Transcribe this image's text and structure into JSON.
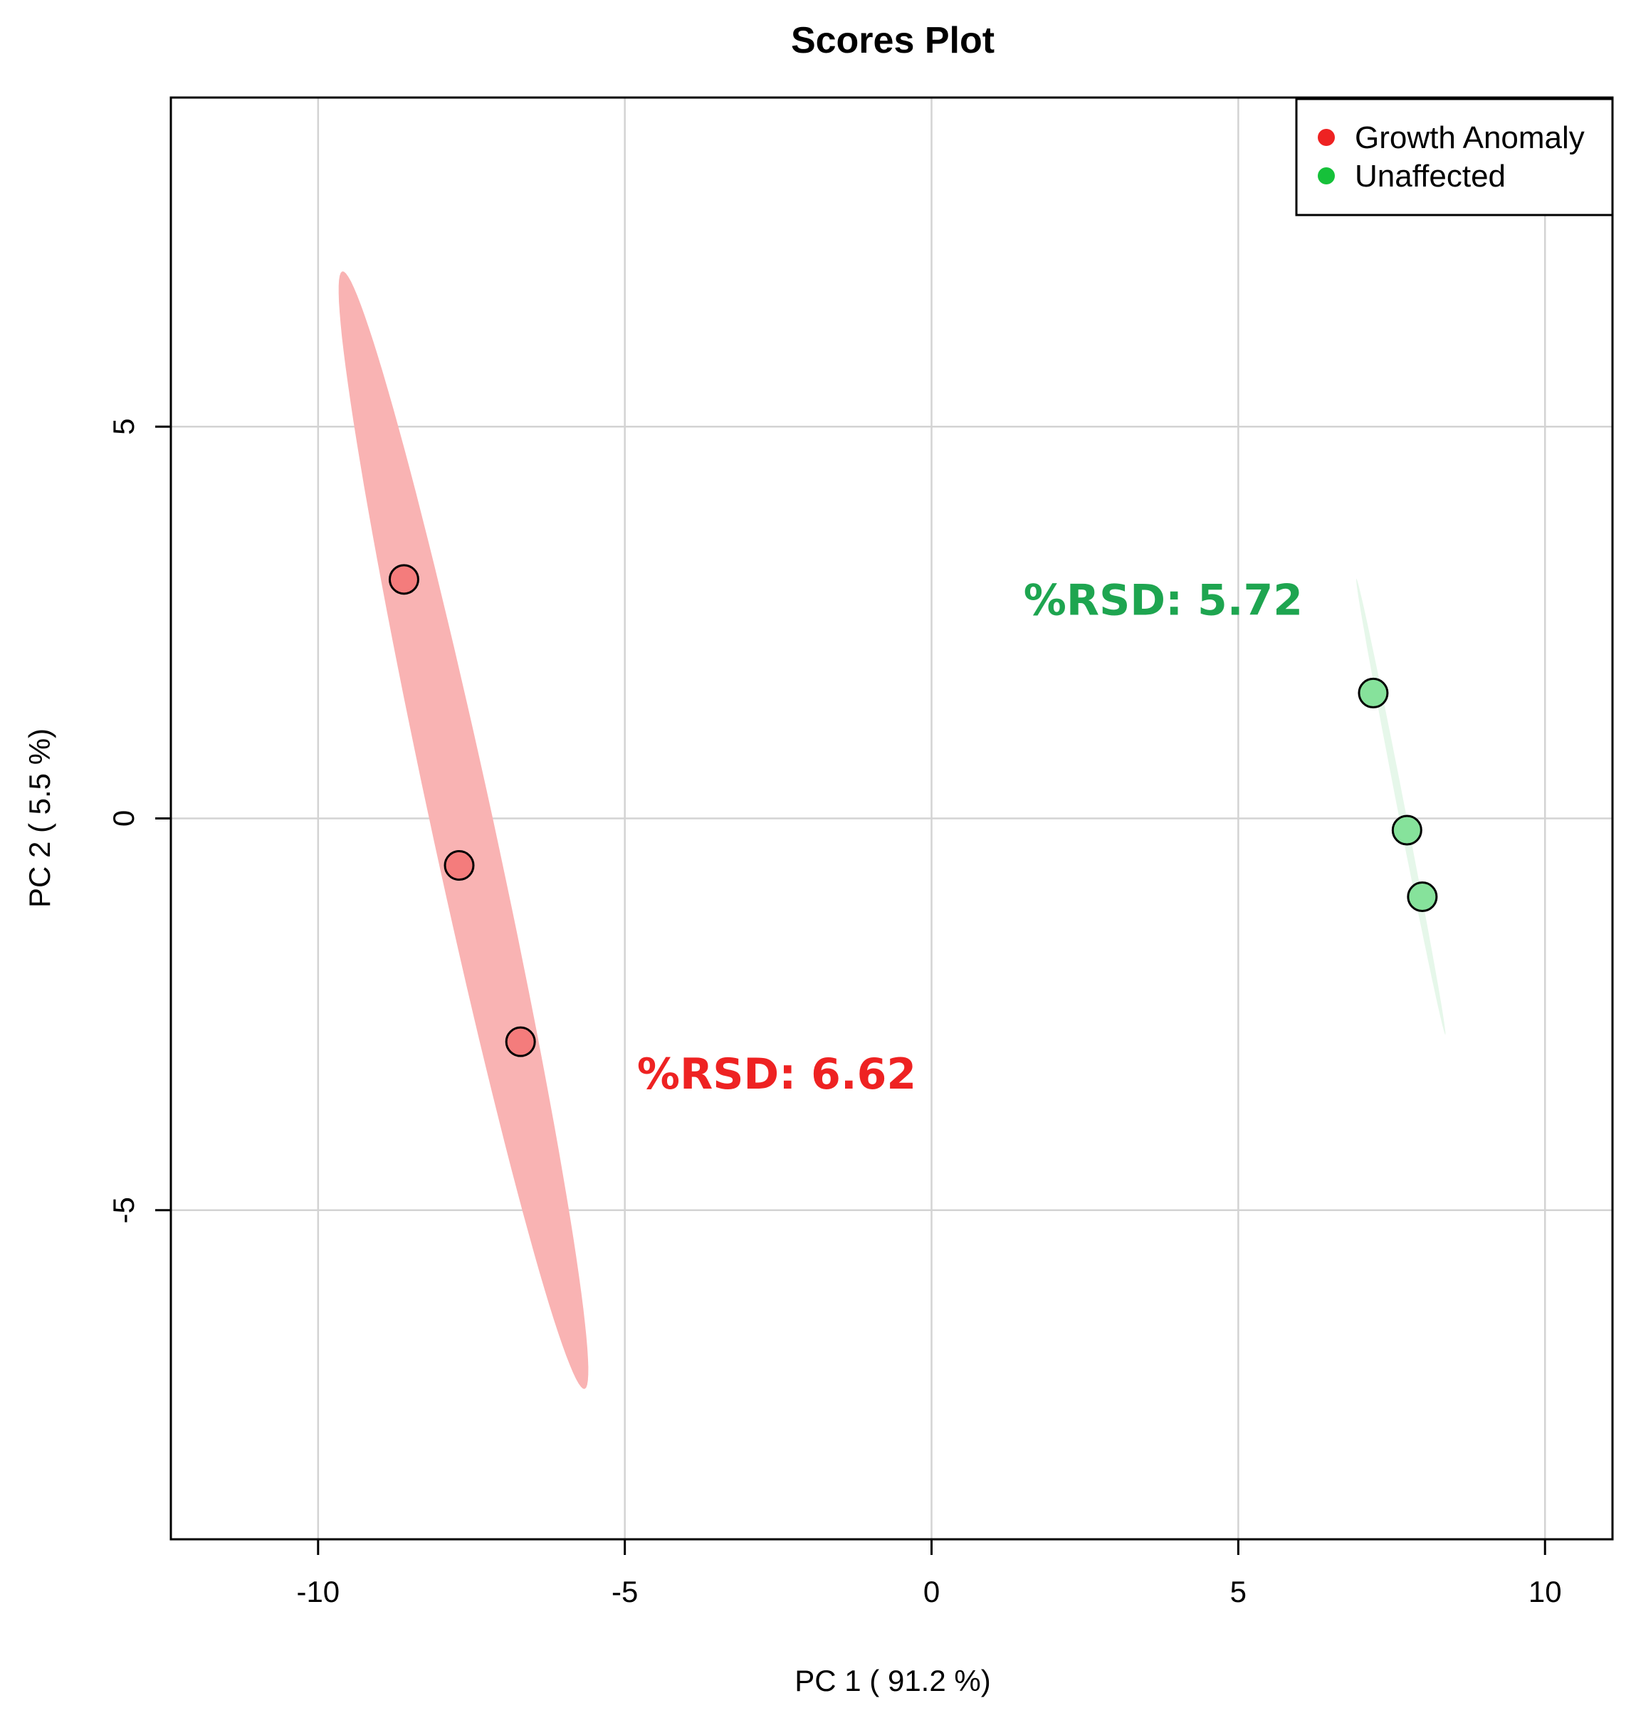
{
  "chart_data": {
    "type": "scatter",
    "title": "Scores Plot",
    "xlabel": "PC 1 ( 91.2 %)",
    "ylabel": "PC 2 ( 5.5 %)",
    "xlim": [
      -12.4,
      11.1
    ],
    "ylim": [
      -9.2,
      9.2
    ],
    "xticks": [
      -10,
      -5,
      0,
      5,
      10
    ],
    "yticks": [
      -5,
      0,
      5
    ],
    "xtick_labels": [
      "-10",
      "-5",
      "0",
      "5",
      "10"
    ],
    "ytick_labels": [
      "-5",
      "0",
      "5"
    ],
    "grid": true,
    "legend_position": "top-right",
    "series": [
      {
        "name": "Growth Anomaly",
        "legend_color": "#ee2222",
        "point_color": "#f47c7c",
        "ellipse_color": "#f9b3b3",
        "x": [
          -8.6,
          -7.7,
          -6.7
        ],
        "y": [
          3.05,
          -0.6,
          -2.85
        ],
        "ellipse": {
          "center": [
            -7.63,
            -0.15
          ],
          "semi_major": 7.4,
          "semi_minor": 0.5,
          "angle_deg": -74.5
        },
        "annotation": {
          "text": "%RSD: 6.62",
          "x": -4.8,
          "y": -3.45,
          "color": "#ee2222"
        }
      },
      {
        "name": "Unaffected",
        "legend_color": "#16c13a",
        "point_color": "#86e29b",
        "ellipse_color": "#e6f7ea",
        "x": [
          7.2,
          7.75,
          8.0
        ],
        "y": [
          1.6,
          -0.15,
          -1.0
        ],
        "ellipse": {
          "center": [
            7.65,
            0.15
          ],
          "semi_major": 3.0,
          "semi_minor": 0.06,
          "angle_deg": -76
        },
        "annotation": {
          "text": "%RSD: 5.72",
          "x": 1.5,
          "y": 2.6,
          "color": "#1ea550"
        }
      }
    ]
  }
}
